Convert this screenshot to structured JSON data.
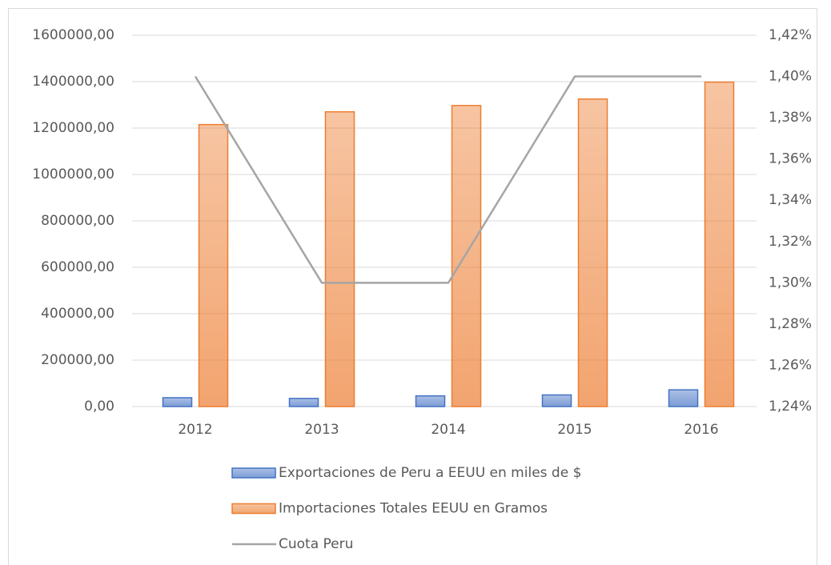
{
  "chart_data": {
    "type": "bar",
    "categories": [
      "2012",
      "2013",
      "2014",
      "2015",
      "2016"
    ],
    "series": [
      {
        "name": "Exportaciones de Peru a EEUU en miles de $",
        "color": "#4472c4",
        "type": "bar",
        "values": [
          38000,
          35000,
          46000,
          50000,
          72000
        ]
      },
      {
        "name": "Importaciones Totales EEUU en Gramos",
        "color": "#ed7d31",
        "type": "bar",
        "values": [
          1215000,
          1270000,
          1297000,
          1325000,
          1398000
        ]
      },
      {
        "name": "Cuota Peru",
        "color": "#a5a5a5",
        "type": "line",
        "axis": "y2",
        "values": [
          1.4,
          1.3,
          1.3,
          1.4,
          1.4
        ]
      }
    ],
    "ylim": [
      0,
      1600000
    ],
    "yticks": [
      {
        "value": 0,
        "label": "0,00"
      },
      {
        "value": 200000,
        "label": "200000,00"
      },
      {
        "value": 400000,
        "label": "400000,00"
      },
      {
        "value": 600000,
        "label": "600000,00"
      },
      {
        "value": 800000,
        "label": "800000,00"
      },
      {
        "value": 1000000,
        "label": "1000000,00"
      },
      {
        "value": 1200000,
        "label": "1200000,00"
      },
      {
        "value": 1400000,
        "label": "1400000,00"
      },
      {
        "value": 1600000,
        "label": "1600000,00"
      }
    ],
    "y2lim": [
      1.24,
      1.42
    ],
    "y2ticks": [
      {
        "value": 1.24,
        "label": "1,24%"
      },
      {
        "value": 1.26,
        "label": "1,26%"
      },
      {
        "value": 1.28,
        "label": "1,28%"
      },
      {
        "value": 1.3,
        "label": "1,30%"
      },
      {
        "value": 1.32,
        "label": "1,32%"
      },
      {
        "value": 1.34,
        "label": "1,34%"
      },
      {
        "value": 1.36,
        "label": "1,36%"
      },
      {
        "value": 1.38,
        "label": "1,38%"
      },
      {
        "value": 1.4,
        "label": "1,40%"
      },
      {
        "value": 1.42,
        "label": "1,42%"
      }
    ],
    "grid": true,
    "legend": "bottom"
  }
}
